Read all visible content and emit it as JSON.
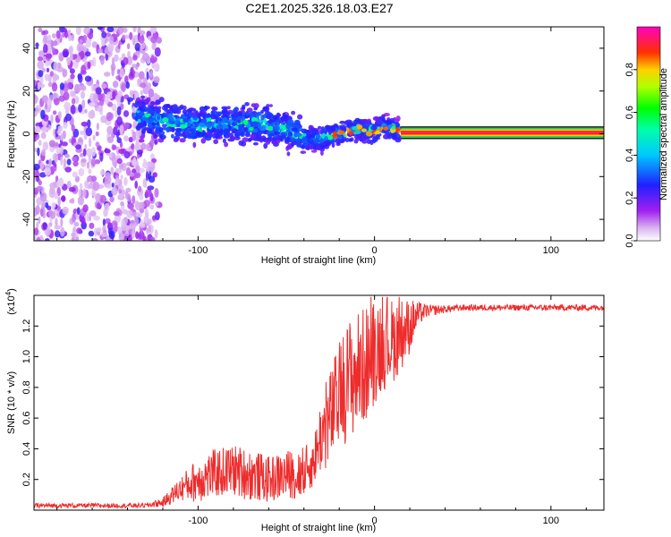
{
  "title": "C2E1.2025.326.18.03.E27",
  "chart_data": [
    {
      "type": "heatmap",
      "name": "spectrogram",
      "xlabel": "Height of straight line (km)",
      "ylabel": "Frequency (Hz)",
      "xlim": [
        -193,
        130
      ],
      "ylim": [
        -50,
        50
      ],
      "xticks": [
        -100,
        0,
        100
      ],
      "yticks": [
        -40,
        -20,
        0,
        20,
        40
      ],
      "x_tick_labels": [
        "-100",
        "0",
        "100"
      ],
      "y_tick_labels": [
        "-40",
        "-20",
        "0",
        "20",
        "40"
      ],
      "colorbar": {
        "label": "Normalized spectral amplitude",
        "range": [
          0,
          1
        ],
        "ticks": [
          0,
          0.2,
          0.4,
          0.6,
          0.8
        ],
        "tick_labels": [
          "0.0",
          "0.2",
          "0.4",
          "0.6",
          "0.8"
        ],
        "colors": [
          "#ffffff",
          "#a020f0",
          "#0000ff",
          "#00ffff",
          "#00ff00",
          "#ffff00",
          "#ff0000",
          "#ff00ff"
        ]
      },
      "regions": [
        {
          "x_range": [
            -193,
            -122
          ],
          "description_value": "broadband noise",
          "freq_range": [
            -50,
            50
          ],
          "amplitude": 0.1
        },
        {
          "x_range": [
            -135,
            15
          ],
          "description_value": "tone drifting",
          "freq_start": 8,
          "freq_end": 0,
          "amplitude": 0.35
        },
        {
          "x_range": [
            15,
            130
          ],
          "description_value": "steady tone",
          "freq": 0.5,
          "amplitude": 1.0
        }
      ],
      "ridge": {
        "x": [
          -135,
          -120,
          -100,
          -80,
          -60,
          -45,
          -38,
          -30,
          -20,
          -10,
          0,
          5,
          10,
          15
        ],
        "freq": [
          8,
          6,
          4,
          5,
          4,
          1,
          -3,
          -2,
          0,
          2,
          1,
          4,
          2,
          1
        ]
      }
    },
    {
      "type": "line",
      "name": "snr",
      "xlabel": "Height of straight line (km)",
      "ylabel": "SNR (10 * v/v)",
      "y_scale_label": "(x10",
      "y_scale_exp": "4",
      "xlim": [
        -193,
        130
      ],
      "ylim": [
        0,
        14000
      ],
      "xticks": [
        -100,
        0,
        100
      ],
      "x_tick_labels": [
        "-100",
        "0",
        "100"
      ],
      "yticks": [
        2000,
        4000,
        6000,
        8000,
        10000,
        12000
      ],
      "y_tick_labels": [
        "0.2",
        "0.4",
        "0.6",
        "0.8",
        "1.0",
        "1.2"
      ],
      "color": "#ee2c2c",
      "series": [
        {
          "name": "SNR",
          "x": [
            -193,
            -150,
            -130,
            -120,
            -110,
            -100,
            -90,
            -80,
            -70,
            -60,
            -50,
            -40,
            -35,
            -30,
            -25,
            -20,
            -15,
            -10,
            -5,
            0,
            5,
            10,
            15,
            20,
            25,
            30,
            40,
            50,
            60,
            80,
            100,
            120,
            130
          ],
          "y": [
            300,
            300,
            300,
            500,
            1400,
            2000,
            2400,
            2600,
            2300,
            2000,
            2300,
            2500,
            3000,
            5000,
            6000,
            7500,
            8500,
            9000,
            9500,
            10500,
            11000,
            11000,
            11500,
            12000,
            12800,
            13000,
            13100,
            13200,
            13200,
            13200,
            13200,
            13200,
            13200
          ],
          "spread": [
            150,
            150,
            150,
            300,
            800,
            1500,
            1600,
            1700,
            1700,
            1500,
            1600,
            1700,
            1500,
            2500,
            3200,
            3500,
            4000,
            4000,
            3800,
            3600,
            3200,
            2800,
            2400,
            1800,
            800,
            400,
            250,
            200,
            200,
            200,
            200,
            200,
            200
          ]
        }
      ]
    }
  ]
}
